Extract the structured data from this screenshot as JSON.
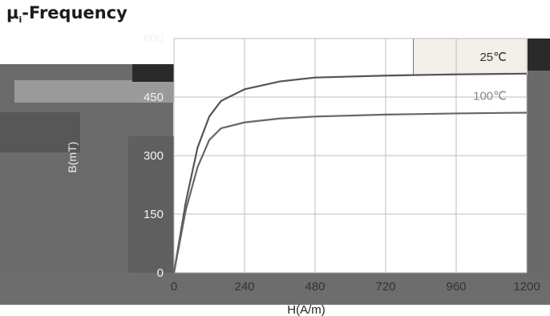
{
  "title_main": "μ",
  "title_sub": "i",
  "title_rest": "-Frequency",
  "chart_data": {
    "type": "line",
    "xlabel": "H(A/m)",
    "ylabel": "B(mT)",
    "xlim": [
      0,
      1200
    ],
    "ylim": [
      0,
      600
    ],
    "x_ticks": [
      "0",
      "240",
      "480",
      "720",
      "960",
      "1200"
    ],
    "y_ticks": [
      "0",
      "150",
      "300",
      "450",
      "600"
    ],
    "grid": true,
    "series": [
      {
        "name": "25℃",
        "color": "#555555",
        "x": [
          0,
          40,
          80,
          120,
          160,
          240,
          360,
          480,
          720,
          960,
          1200
        ],
        "y": [
          0,
          180,
          320,
          400,
          440,
          470,
          490,
          500,
          505,
          508,
          510
        ]
      },
      {
        "name": "100℃",
        "color": "#666666",
        "x": [
          0,
          40,
          80,
          120,
          160,
          240,
          360,
          480,
          720,
          960,
          1200
        ],
        "y": [
          0,
          160,
          270,
          340,
          370,
          385,
          395,
          400,
          405,
          408,
          410
        ]
      }
    ]
  },
  "colors": {
    "plot_bg": "#ffffff",
    "grid": "#bdbdbd",
    "panel": "#6b6b6b"
  }
}
